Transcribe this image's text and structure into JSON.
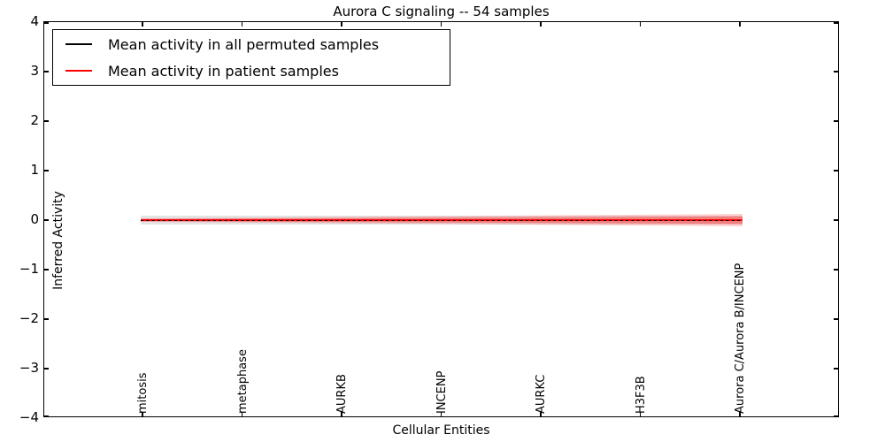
{
  "chart": {
    "title": "Aurora C signaling -- 54 samples",
    "xlabel": "Cellular Entities",
    "ylabel": "Inferred Activity",
    "ytick_labels": [
      "4",
      "3",
      "2",
      "1",
      "0",
      "−1",
      "−2",
      "−3",
      "−4"
    ],
    "xtick_labels": [
      "mitosis",
      "metaphase",
      "AURKB",
      "INCENP",
      "AURKC",
      "H3F3B",
      "Aurora C/Aurora B/INCENP"
    ],
    "legend": [
      {
        "label": "Mean activity in all permuted samples",
        "color": "#000000"
      },
      {
        "label": "Mean activity in patient samples",
        "color": "#ff0000"
      }
    ]
  },
  "chart_data": {
    "type": "line",
    "title": "Aurora C signaling -- 54 samples",
    "xlabel": "Cellular Entities",
    "ylabel": "Inferred Activity",
    "ylim": [
      -4,
      4
    ],
    "yticks": [
      4,
      3,
      2,
      1,
      0,
      -1,
      -2,
      -3,
      -4
    ],
    "grid": false,
    "legend_position": "upper left",
    "categories": [
      "mitosis",
      "metaphase",
      "AURKB",
      "INCENP",
      "AURKC",
      "H3F3B",
      "Aurora C/Aurora B/INCENP"
    ],
    "series": [
      {
        "name": "Mean activity in all permuted samples",
        "color": "#000000",
        "style": "dashed-over-red",
        "values": [
          0.0,
          0.0,
          0.0,
          0.0,
          0.0,
          0.0,
          0.0
        ]
      },
      {
        "name": "Mean activity in patient samples",
        "color": "#ff0000",
        "style": "solid",
        "values": [
          0.0,
          0.0,
          0.0,
          0.0,
          0.01,
          0.02,
          0.05
        ]
      }
    ],
    "shaded_bands": [
      {
        "for": "Mean activity in all permuted samples",
        "color": "#e4e4e4",
        "half_width": [
          0.09,
          0.09,
          0.09,
          0.09,
          0.09,
          0.09,
          0.09
        ]
      },
      {
        "for": "Mean activity in patient samples",
        "color": "rgba(255,0,0,0.25)",
        "half_width": [
          0.03,
          0.04,
          0.05,
          0.06,
          0.07,
          0.08,
          0.1
        ]
      }
    ]
  }
}
